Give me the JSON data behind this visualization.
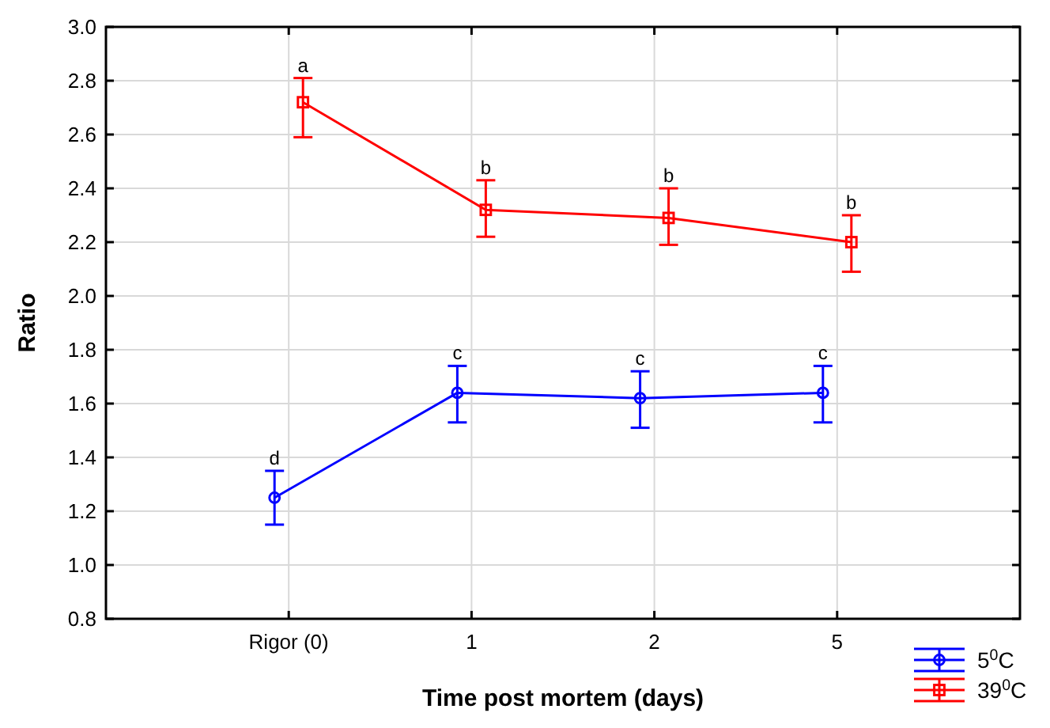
{
  "chart_data": {
    "type": "line",
    "xlabel": "Time post mortem (days)",
    "ylabel": "Ratio",
    "categories": [
      "Rigor (0)",
      "1",
      "2",
      "5"
    ],
    "ylim": [
      0.8,
      3.0
    ],
    "yticks": [
      0.8,
      {
        "value": 1,
        "label": "1.0"
      },
      1.2,
      1.4,
      1.6,
      1.8,
      {
        "value": 2,
        "label": "2.0"
      },
      2.2,
      2.4,
      2.6,
      2.8,
      {
        "value": 3,
        "label": "3.0"
      }
    ],
    "grid": true,
    "legend": "bottom right",
    "line_style": "solid",
    "series": [
      {
        "name": "5$^{0}$C",
        "color": "#0000ff",
        "marker": "circle",
        "values": [
          1.25,
          1.64,
          1.62,
          1.64
        ],
        "errors": [
          [
            1.15,
            1.35
          ],
          [
            1.53,
            1.74
          ],
          [
            1.51,
            1.72
          ],
          [
            1.53,
            1.74
          ]
        ],
        "value_labels": [
          "d",
          "c",
          "c",
          "c"
        ]
      },
      {
        "name": "39$^{0}$C",
        "color": "#ff0000",
        "marker": "square",
        "values": [
          2.72,
          2.32,
          2.29,
          2.2
        ],
        "errors": [
          [
            2.59,
            2.81
          ],
          [
            2.22,
            2.43
          ],
          [
            2.19,
            2.4
          ],
          [
            2.09,
            2.3
          ]
        ],
        "value_labels": [
          "a",
          "b",
          "b",
          "b"
        ]
      }
    ]
  }
}
